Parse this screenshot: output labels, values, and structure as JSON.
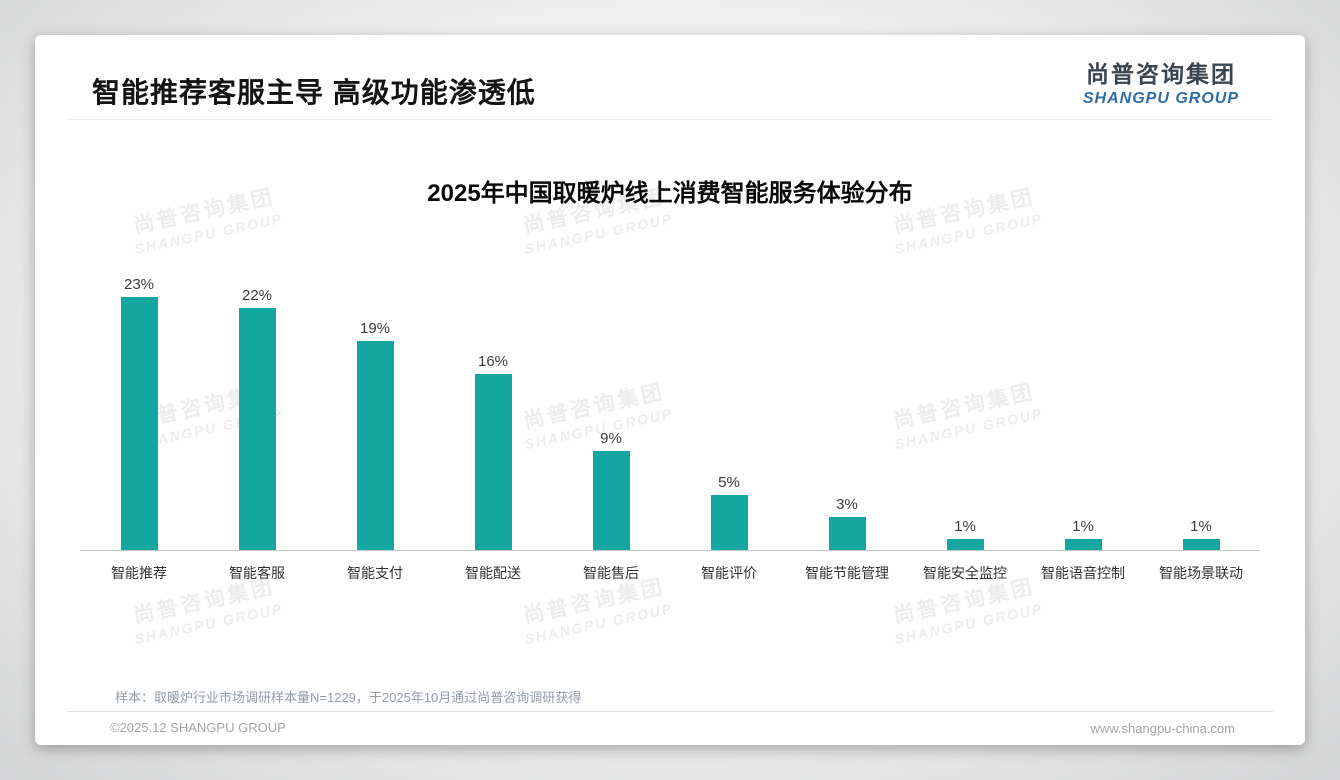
{
  "page": {
    "slide_title": "智能推荐客服主导 高级功能渗透低",
    "logo": {
      "cn": "尚普咨询集团",
      "en": "SHANGPU GROUP"
    },
    "watermark": {
      "line1": "尚普咨询集团",
      "line2": "SHANGPU GROUP"
    },
    "footnote": "样本：取暖炉行业市场调研样本量N=1229，于2025年10月通过尚普咨询调研获得",
    "footer": {
      "copyright": "©2025.12 SHANGPU GROUP",
      "website": "www.shangpu-china.com"
    }
  },
  "colors": {
    "bar": "#13a79f",
    "logo_cn": "#394551",
    "logo_en": "#2e6ca8"
  },
  "chart_data": {
    "type": "bar",
    "title": "2025年中国取暖炉线上消费智能服务体验分布",
    "categories": [
      "智能推荐",
      "智能客服",
      "智能支付",
      "智能配送",
      "智能售后",
      "智能评价",
      "智能节能管理",
      "智能安全监控",
      "智能语音控制",
      "智能场景联动"
    ],
    "values": [
      23,
      22,
      19,
      16,
      9,
      5,
      3,
      1,
      1,
      1
    ],
    "value_labels": [
      "23%",
      "22%",
      "19%",
      "16%",
      "9%",
      "5%",
      "3%",
      "1%",
      "1%",
      "1%"
    ],
    "unit": "%",
    "xlabel": "",
    "ylabel": "",
    "ylim": [
      0,
      25
    ],
    "grid": false,
    "legend": "none",
    "bar_color": "#13a79f"
  }
}
